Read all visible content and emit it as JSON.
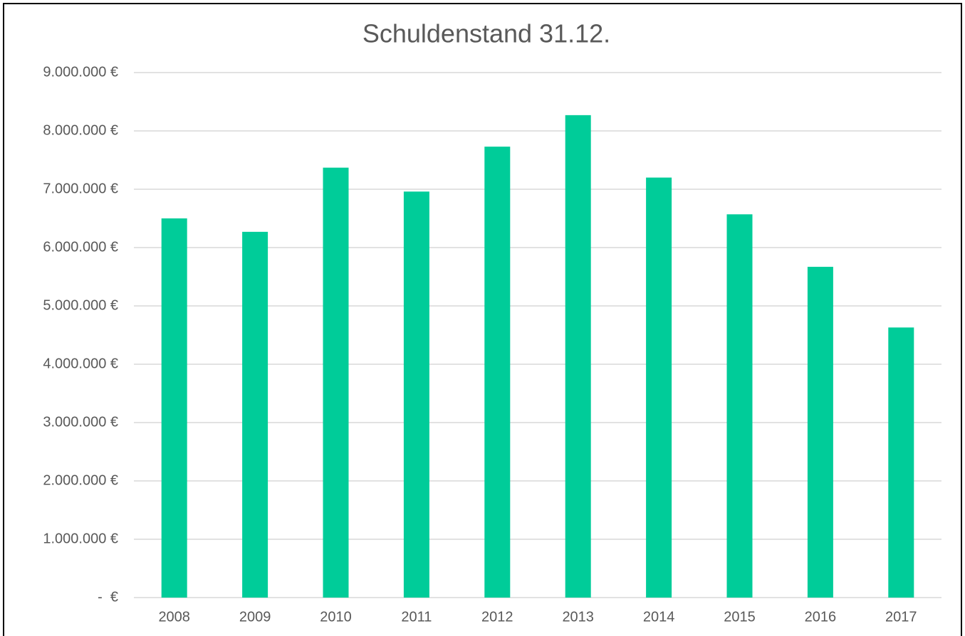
{
  "chart_data": {
    "type": "bar",
    "title": "Schuldenstand 31.12.",
    "categories": [
      "2008",
      "2009",
      "2010",
      "2011",
      "2012",
      "2013",
      "2014",
      "2015",
      "2016",
      "2017"
    ],
    "values": [
      6500000,
      6270000,
      7370000,
      6960000,
      7730000,
      8270000,
      7200000,
      6570000,
      5670000,
      4630000
    ],
    "color": "#00cc99",
    "ylim": [
      0,
      9000000
    ],
    "yticks": [
      {
        "value": 0,
        "label": "-  €"
      },
      {
        "value": 1000000,
        "label": "1.000.000 €"
      },
      {
        "value": 2000000,
        "label": "2.000.000 €"
      },
      {
        "value": 3000000,
        "label": "3.000.000 €"
      },
      {
        "value": 4000000,
        "label": "4.000.000 €"
      },
      {
        "value": 5000000,
        "label": "5.000.000 €"
      },
      {
        "value": 6000000,
        "label": "6.000.000 €"
      },
      {
        "value": 7000000,
        "label": "7.000.000 €"
      },
      {
        "value": 8000000,
        "label": "8.000.000 €"
      },
      {
        "value": 9000000,
        "label": "9.000.000 €"
      }
    ],
    "grid": true
  }
}
